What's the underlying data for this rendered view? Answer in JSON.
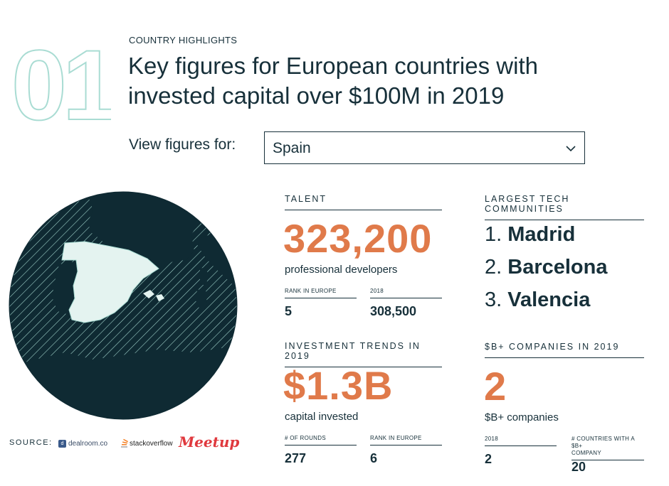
{
  "header": {
    "big_number": "01",
    "eyebrow": "COUNTRY HIGHLIGHTS",
    "title_line1": "Key figures for European countries with",
    "title_line2": "invested capital over $100M in 2019"
  },
  "filter": {
    "label": "View figures for:",
    "selected": "Spain"
  },
  "talent": {
    "title": "TALENT",
    "value": "323,200",
    "caption": "professional developers",
    "rank_label": "RANK IN EUROPE",
    "rank_value": "5",
    "prev_label": "2018",
    "prev_value": "308,500"
  },
  "communities": {
    "title": "LARGEST TECH COMMUNITIES",
    "items": [
      {
        "num": "1.",
        "name": "Madrid"
      },
      {
        "num": "2.",
        "name": "Barcelona"
      },
      {
        "num": "3.",
        "name": "Valencia"
      }
    ]
  },
  "investment": {
    "title": "INVESTMENT TRENDS IN 2019",
    "value": "$1.3B",
    "caption": "capital invested",
    "rounds_label": "# OF ROUNDS",
    "rounds_value": "277",
    "rank_label": "RANK IN EUROPE",
    "rank_value": "6"
  },
  "billion": {
    "title": "$B+ COMPANIES IN 2019",
    "value": "2",
    "caption": "$B+ companies",
    "prev_label": "2018",
    "prev_value": "2",
    "countries_label_line1": "# COUNTRIES WITH A $B+",
    "countries_label_line2": "COMPANY",
    "countries_value": "20"
  },
  "source": {
    "label": "SOURCE:",
    "logos": [
      "dealroom.co",
      "stackoverflow",
      "Meetup"
    ]
  },
  "colors": {
    "accent": "#e07a4a",
    "dark": "#17303a",
    "globe": "#0f2a33",
    "highlight": "#e4f3f0",
    "outline": "#a9dcd3"
  }
}
